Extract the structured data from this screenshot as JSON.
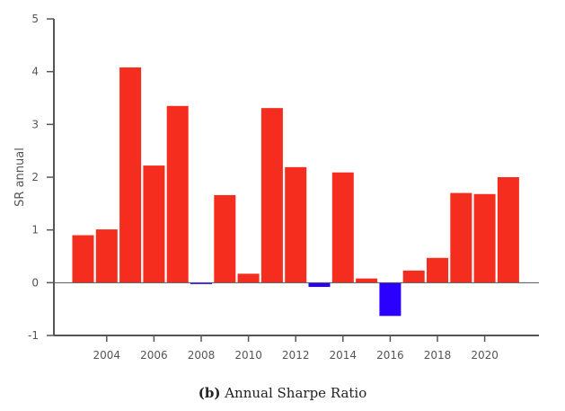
{
  "chart_data": {
    "type": "bar",
    "categories": [
      "2003",
      "2004",
      "2005",
      "2006",
      "2007",
      "2008",
      "2009",
      "2010",
      "2011",
      "2012",
      "2013",
      "2014",
      "2015",
      "2016",
      "2017",
      "2018",
      "2019",
      "2020",
      "2021"
    ],
    "values": [
      0.9,
      1.01,
      4.08,
      2.22,
      3.35,
      -0.02,
      1.66,
      0.17,
      3.31,
      2.19,
      -0.08,
      2.09,
      0.08,
      -0.63,
      0.23,
      0.47,
      1.7,
      1.68,
      2.0
    ],
    "xticks": [
      "2004",
      "2006",
      "2008",
      "2010",
      "2012",
      "2014",
      "2016",
      "2018",
      "2020"
    ],
    "yticks": [
      "-1",
      "0",
      "1",
      "2",
      "3",
      "4",
      "5"
    ],
    "ylim": [
      -1,
      5
    ],
    "xlabel": "",
    "ylabel": "SR annual",
    "colors": {
      "positive": "#f52d1f",
      "negative": "#2b00ff",
      "axis": "#555555"
    },
    "grid": false
  },
  "caption": {
    "label": "(b)",
    "text": "Annual Sharpe Ratio"
  }
}
